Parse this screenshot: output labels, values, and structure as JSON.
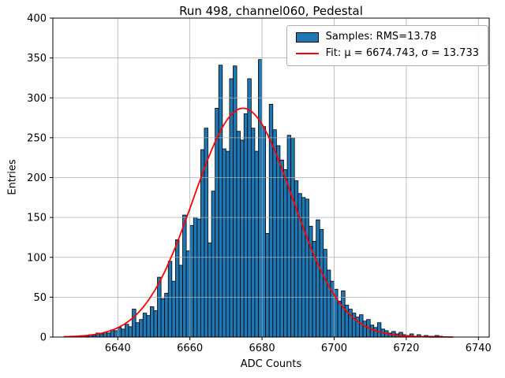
{
  "chart_data": {
    "type": "histogram",
    "title": "Run 498, channel060, Pedestal",
    "xlabel": "ADC Counts",
    "ylabel": "Entries",
    "xlim": [
      6622,
      6743
    ],
    "ylim": [
      0,
      400
    ],
    "xticks": [
      6640,
      6660,
      6680,
      6700,
      6720,
      6740
    ],
    "yticks": [
      0,
      50,
      100,
      150,
      200,
      250,
      300,
      350,
      400
    ],
    "grid": true,
    "legend_position": "upper right",
    "bin_start": 6627,
    "bin_width": 1,
    "counts": [
      1,
      0,
      1,
      2,
      1,
      3,
      2,
      5,
      4,
      6,
      5,
      9,
      8,
      12,
      10,
      16,
      13,
      35,
      18,
      22,
      30,
      27,
      38,
      33,
      75,
      48,
      55,
      95,
      70,
      122,
      90,
      153,
      108,
      140,
      150,
      148,
      235,
      262,
      118,
      183,
      287,
      341,
      236,
      233,
      324,
      340,
      258,
      247,
      280,
      324,
      262,
      233,
      348,
      264,
      130,
      292,
      260,
      240,
      222,
      210,
      253,
      250,
      196,
      180,
      175,
      173,
      139,
      120,
      147,
      135,
      110,
      84,
      70,
      60,
      45,
      58,
      40,
      35,
      30,
      25,
      28,
      20,
      22,
      15,
      12,
      18,
      10,
      8,
      5,
      7,
      4,
      6,
      3,
      2,
      4,
      1,
      3,
      1,
      2,
      1,
      1,
      2,
      1
    ],
    "fit": {
      "mu": 6674.743,
      "sigma": 13.733,
      "peak": 287
    },
    "legend": {
      "samples": "Samples: RMS=13.78",
      "fit": "Fit: μ = 6674.743, σ = 13.733"
    },
    "colors": {
      "bar_fill": "#1f77b4",
      "bar_edge": "#000000",
      "fit": "#ff0000",
      "grid": "#b0b0b0",
      "frame": "#000000"
    }
  }
}
